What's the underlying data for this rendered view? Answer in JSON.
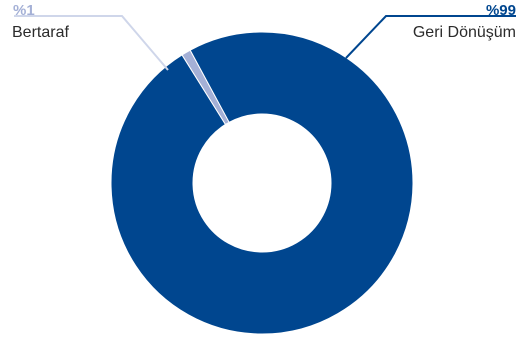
{
  "chart_data": {
    "type": "pie",
    "variant": "donut",
    "slices": [
      {
        "label": "Geri Dönüşüm",
        "value": 99,
        "value_label": "%99",
        "color": "#00468f"
      },
      {
        "label": "Bertaraf",
        "value": 1,
        "value_label": "%1",
        "color": "#a4b0d6"
      }
    ],
    "colors": {
      "background": "#ffffff",
      "primary_label": "#00468f",
      "secondary_label": "#a4b0d6",
      "category_text": "#2b2b2b"
    },
    "title": "",
    "legend": "none"
  }
}
